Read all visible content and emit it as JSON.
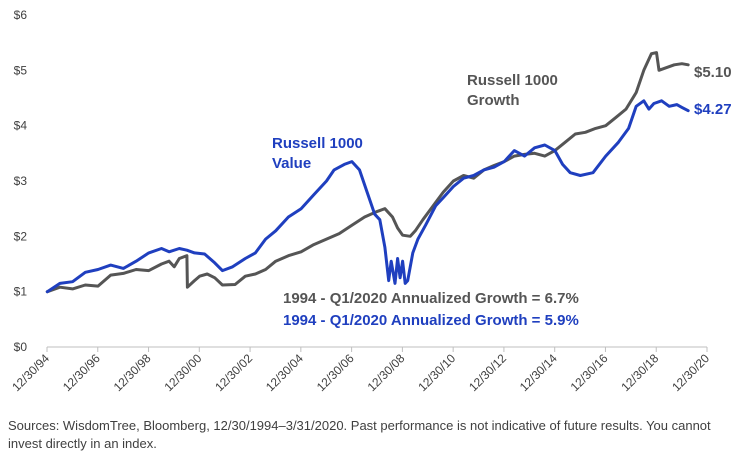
{
  "chart_data": {
    "type": "line",
    "ylim": [
      0,
      6
    ],
    "y_ticks": [
      0,
      1,
      2,
      3,
      4,
      5,
      6
    ],
    "y_tick_labels": [
      "$0",
      "$1",
      "$2",
      "$3",
      "$4",
      "$5",
      "$6"
    ],
    "xlim": [
      1994.99,
      2020.99
    ],
    "x_ticks": [
      1994.99,
      1996.99,
      1998.99,
      2000.99,
      2002.99,
      2004.99,
      2006.99,
      2008.99,
      2010.99,
      2012.99,
      2014.99,
      2016.99,
      2018.99,
      2020.99
    ],
    "x_tick_labels": [
      "12/30/94",
      "12/30/96",
      "12/30/98",
      "12/30/00",
      "12/30/02",
      "12/30/04",
      "12/30/06",
      "12/30/08",
      "12/30/10",
      "12/30/12",
      "12/30/14",
      "12/30/16",
      "12/30/18",
      "12/30/20"
    ],
    "series": [
      {
        "name": "Russell 1000 Growth",
        "label_lines": [
          "Russell 1000",
          "Growth"
        ],
        "color": "#555555",
        "end_label": "$5.10",
        "points": [
          [
            1995.0,
            1.0
          ],
          [
            1995.5,
            1.08
          ],
          [
            1996.0,
            1.05
          ],
          [
            1996.5,
            1.12
          ],
          [
            1997.0,
            1.1
          ],
          [
            1997.5,
            1.3
          ],
          [
            1998.0,
            1.33
          ],
          [
            1998.5,
            1.4
          ],
          [
            1999.0,
            1.38
          ],
          [
            1999.5,
            1.5
          ],
          [
            1999.8,
            1.55
          ],
          [
            2000.0,
            1.45
          ],
          [
            2000.2,
            1.6
          ],
          [
            2000.5,
            1.65
          ],
          [
            2000.52,
            1.08
          ],
          [
            2000.8,
            1.2
          ],
          [
            2001.0,
            1.28
          ],
          [
            2001.3,
            1.32
          ],
          [
            2001.6,
            1.25
          ],
          [
            2001.9,
            1.12
          ],
          [
            2002.4,
            1.13
          ],
          [
            2002.8,
            1.28
          ],
          [
            2003.2,
            1.32
          ],
          [
            2003.6,
            1.4
          ],
          [
            2004.0,
            1.55
          ],
          [
            2004.5,
            1.65
          ],
          [
            2005.0,
            1.72
          ],
          [
            2005.5,
            1.85
          ],
          [
            2006.0,
            1.95
          ],
          [
            2006.5,
            2.05
          ],
          [
            2007.0,
            2.2
          ],
          [
            2007.5,
            2.35
          ],
          [
            2008.0,
            2.45
          ],
          [
            2008.3,
            2.5
          ],
          [
            2008.6,
            2.35
          ],
          [
            2008.8,
            2.15
          ],
          [
            2009.0,
            2.02
          ],
          [
            2009.3,
            2.0
          ],
          [
            2009.5,
            2.1
          ],
          [
            2009.8,
            2.3
          ],
          [
            2010.2,
            2.55
          ],
          [
            2010.6,
            2.8
          ],
          [
            2011.0,
            3.0
          ],
          [
            2011.4,
            3.1
          ],
          [
            2011.8,
            3.05
          ],
          [
            2012.2,
            3.2
          ],
          [
            2012.6,
            3.28
          ],
          [
            2013.0,
            3.35
          ],
          [
            2013.4,
            3.45
          ],
          [
            2013.8,
            3.48
          ],
          [
            2014.2,
            3.5
          ],
          [
            2014.6,
            3.45
          ],
          [
            2015.0,
            3.55
          ],
          [
            2015.4,
            3.7
          ],
          [
            2015.8,
            3.85
          ],
          [
            2016.2,
            3.88
          ],
          [
            2016.6,
            3.95
          ],
          [
            2017.0,
            4.0
          ],
          [
            2017.4,
            4.15
          ],
          [
            2017.8,
            4.3
          ],
          [
            2018.2,
            4.6
          ],
          [
            2018.5,
            5.0
          ],
          [
            2018.8,
            5.3
          ],
          [
            2019.0,
            5.32
          ],
          [
            2019.1,
            5.0
          ],
          [
            2019.4,
            5.05
          ],
          [
            2019.7,
            5.1
          ],
          [
            2020.0,
            5.12
          ],
          [
            2020.25,
            5.1
          ]
        ]
      },
      {
        "name": "Russell 1000 Value",
        "label_lines": [
          "Russell 1000",
          "Value"
        ],
        "color": "#1f3fbf",
        "end_label": "$4.27",
        "points": [
          [
            1995.0,
            1.0
          ],
          [
            1995.5,
            1.15
          ],
          [
            1996.0,
            1.18
          ],
          [
            1996.5,
            1.35
          ],
          [
            1997.0,
            1.4
          ],
          [
            1997.5,
            1.48
          ],
          [
            1998.0,
            1.42
          ],
          [
            1998.5,
            1.55
          ],
          [
            1999.0,
            1.7
          ],
          [
            1999.5,
            1.78
          ],
          [
            1999.8,
            1.72
          ],
          [
            2000.2,
            1.78
          ],
          [
            2000.5,
            1.75
          ],
          [
            2000.8,
            1.7
          ],
          [
            2001.2,
            1.68
          ],
          [
            2001.6,
            1.52
          ],
          [
            2001.9,
            1.38
          ],
          [
            2002.3,
            1.45
          ],
          [
            2002.8,
            1.6
          ],
          [
            2003.2,
            1.7
          ],
          [
            2003.6,
            1.95
          ],
          [
            2004.0,
            2.1
          ],
          [
            2004.5,
            2.35
          ],
          [
            2005.0,
            2.5
          ],
          [
            2005.5,
            2.75
          ],
          [
            2006.0,
            3.0
          ],
          [
            2006.3,
            3.2
          ],
          [
            2006.7,
            3.3
          ],
          [
            2007.0,
            3.35
          ],
          [
            2007.3,
            3.2
          ],
          [
            2007.6,
            2.8
          ],
          [
            2007.9,
            2.4
          ],
          [
            2008.1,
            2.3
          ],
          [
            2008.3,
            1.8
          ],
          [
            2008.45,
            1.2
          ],
          [
            2008.55,
            1.55
          ],
          [
            2008.7,
            1.15
          ],
          [
            2008.8,
            1.6
          ],
          [
            2008.9,
            1.25
          ],
          [
            2009.0,
            1.55
          ],
          [
            2009.1,
            1.15
          ],
          [
            2009.2,
            1.2
          ],
          [
            2009.4,
            1.7
          ],
          [
            2009.6,
            1.95
          ],
          [
            2009.9,
            2.2
          ],
          [
            2010.3,
            2.55
          ],
          [
            2010.6,
            2.7
          ],
          [
            2011.0,
            2.9
          ],
          [
            2011.4,
            3.05
          ],
          [
            2011.8,
            3.1
          ],
          [
            2012.2,
            3.2
          ],
          [
            2012.6,
            3.25
          ],
          [
            2013.0,
            3.35
          ],
          [
            2013.4,
            3.55
          ],
          [
            2013.8,
            3.45
          ],
          [
            2014.2,
            3.6
          ],
          [
            2014.6,
            3.65
          ],
          [
            2015.0,
            3.55
          ],
          [
            2015.3,
            3.3
          ],
          [
            2015.6,
            3.15
          ],
          [
            2016.0,
            3.1
          ],
          [
            2016.5,
            3.15
          ],
          [
            2017.0,
            3.45
          ],
          [
            2017.5,
            3.7
          ],
          [
            2017.9,
            3.95
          ],
          [
            2018.2,
            4.35
          ],
          [
            2018.5,
            4.45
          ],
          [
            2018.7,
            4.3
          ],
          [
            2018.9,
            4.4
          ],
          [
            2019.2,
            4.45
          ],
          [
            2019.5,
            4.35
          ],
          [
            2019.8,
            4.38
          ],
          [
            2020.0,
            4.33
          ],
          [
            2020.25,
            4.27
          ]
        ]
      }
    ],
    "annotations": [
      {
        "text": "1994 - Q1/2020 Annualized Growth = 6.7%",
        "color": "#555555"
      },
      {
        "text": "1994 - Q1/2020 Annualized Growth = 5.9%",
        "color": "#1f3fbf"
      }
    ]
  },
  "source_note": "Sources: WisdomTree, Bloomberg, 12/30/1994–3/31/2020. Past performance is not indicative of future results. You cannot invest directly in an index."
}
